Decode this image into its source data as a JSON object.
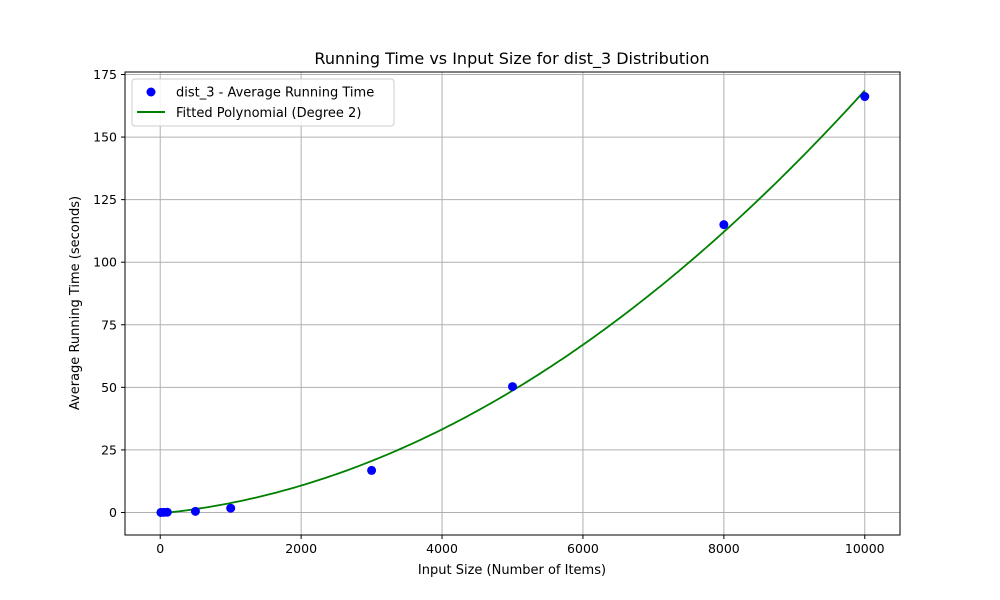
{
  "chart_data": {
    "type": "scatter",
    "title": "Running Time vs Input Size for dist_3 Distribution",
    "xlabel": "Input Size (Number of Items)",
    "ylabel": "Average Running Time (seconds)",
    "xlim": [
      -500,
      10500
    ],
    "ylim": [
      -9,
      176
    ],
    "xticks": [
      0,
      2000,
      4000,
      6000,
      8000,
      10000
    ],
    "yticks": [
      0,
      25,
      50,
      75,
      100,
      125,
      150,
      175
    ],
    "grid": true,
    "legend_position": "top-left",
    "series": [
      {
        "name": "dist_3 - Average Running Time",
        "kind": "scatter",
        "color": "#0000ff",
        "x": [
          10,
          50,
          100,
          500,
          1000,
          3000,
          5000,
          8000,
          10000
        ],
        "y": [
          0.0,
          0.05,
          0.1,
          0.45,
          1.7,
          16.8,
          50.3,
          115.0,
          166.2
        ]
      },
      {
        "name": "Fitted Polynomial (Degree 2)",
        "kind": "line",
        "color": "#008000",
        "x": [
          10,
          1000,
          2000,
          3000,
          4000,
          5000,
          6000,
          7000,
          8000,
          9000,
          10000
        ],
        "y": [
          -0.2,
          3.9,
          10.3,
          20.5,
          33.3,
          48.8,
          67.2,
          88.3,
          112.0,
          138.6,
          168.8
        ]
      }
    ]
  }
}
